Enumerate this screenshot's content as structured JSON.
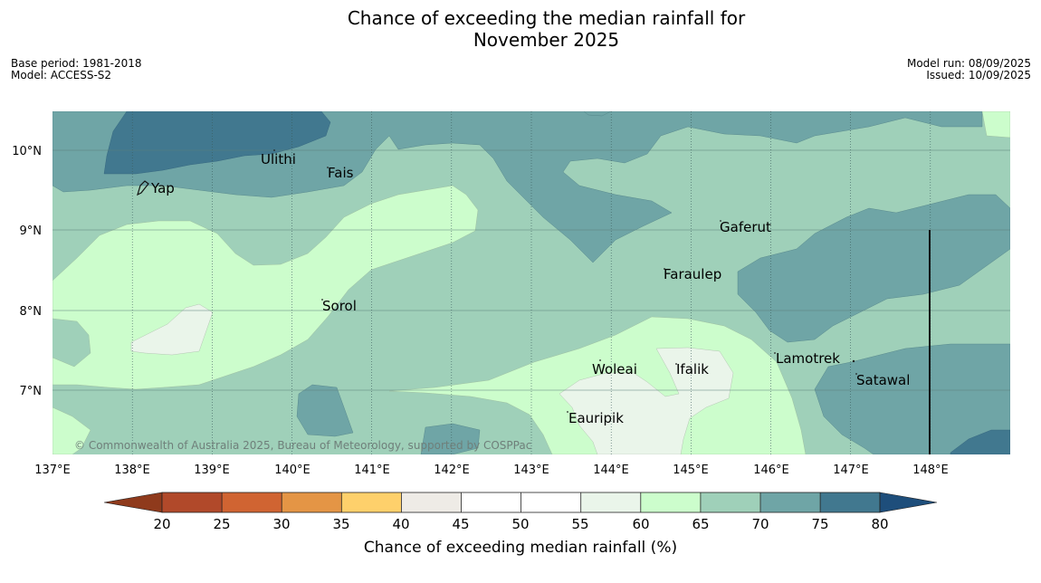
{
  "title": {
    "line1": "Chance of exceeding the median rainfall for",
    "line2": "November 2025"
  },
  "meta_left": {
    "base_period": "Base period: 1981-2018",
    "model": "Model: ACCESS-S2"
  },
  "meta_right": {
    "model_run": "Model run: 08/09/2025",
    "issued": "Issued: 10/09/2025"
  },
  "axes": {
    "lon_labels": [
      "137°E",
      "138°E",
      "139°E",
      "140°E",
      "141°E",
      "142°E",
      "143°E",
      "144°E",
      "145°E",
      "146°E",
      "147°E",
      "148°E"
    ],
    "lat_labels": [
      "10°N",
      "9°N",
      "8°N",
      "7°N"
    ]
  },
  "places": [
    {
      "name": "Yap"
    },
    {
      "name": "Ulithi"
    },
    {
      "name": "Fais"
    },
    {
      "name": "Gaferut"
    },
    {
      "name": "Faraulep"
    },
    {
      "name": "Sorol"
    },
    {
      "name": "Lamotrek"
    },
    {
      "name": "Woleai"
    },
    {
      "name": "Ifalik"
    },
    {
      "name": "Satawal"
    },
    {
      "name": "Eauripik"
    }
  ],
  "copyright": "© Commonwealth of Australia 2025, Bureau of Meteorology, supported by COSPPac",
  "colorbar": {
    "label": "Chance of exceeding median rainfall (%)",
    "ticks": [
      "20",
      "25",
      "30",
      "35",
      "40",
      "45",
      "50",
      "55",
      "60",
      "65",
      "70",
      "75",
      "80"
    ],
    "colors": {
      "below20": "#8f3a1c",
      "b20_25": "#b1492a",
      "b25_30": "#d06432",
      "b30_35": "#e49545",
      "b35_40": "#fed06b",
      "b40_45": "#eeebe6",
      "b45_50": "#ffffff",
      "b50_55": "#ffffff",
      "b55_60": "#eaf5ea",
      "b60_65": "#ccfdcc",
      "b65_70": "#9fd0b9",
      "b70_75": "#6fa5a6",
      "b75_80": "#41788f",
      "above80": "#1e4e7b"
    }
  }
}
